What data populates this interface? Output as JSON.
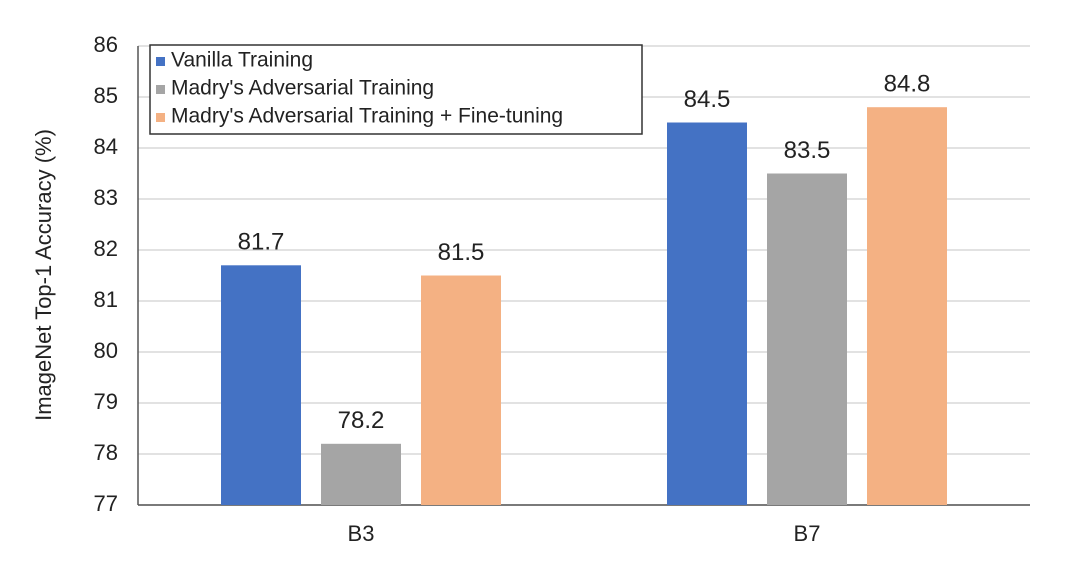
{
  "chart_data": {
    "type": "bar",
    "y_label": "ImageNet Top-1 Accuracy (%)",
    "categories": [
      "B3",
      "B7"
    ],
    "series": [
      {
        "name": "Vanilla Training",
        "color": "#4472c4",
        "values": [
          81.7,
          84.5
        ]
      },
      {
        "name": "Madry's Adversarial Training",
        "color": "#a5a5a5",
        "values": [
          78.2,
          83.5
        ]
      },
      {
        "name": "Madry's Adversarial Training + Fine-tuning",
        "color": "#f4b183",
        "values": [
          81.5,
          84.8
        ]
      }
    ],
    "ylim": [
      77,
      86
    ],
    "yticks": [
      77,
      78,
      79,
      80,
      81,
      82,
      83,
      84,
      85,
      86
    ],
    "grid": true,
    "legend": "upper left"
  }
}
